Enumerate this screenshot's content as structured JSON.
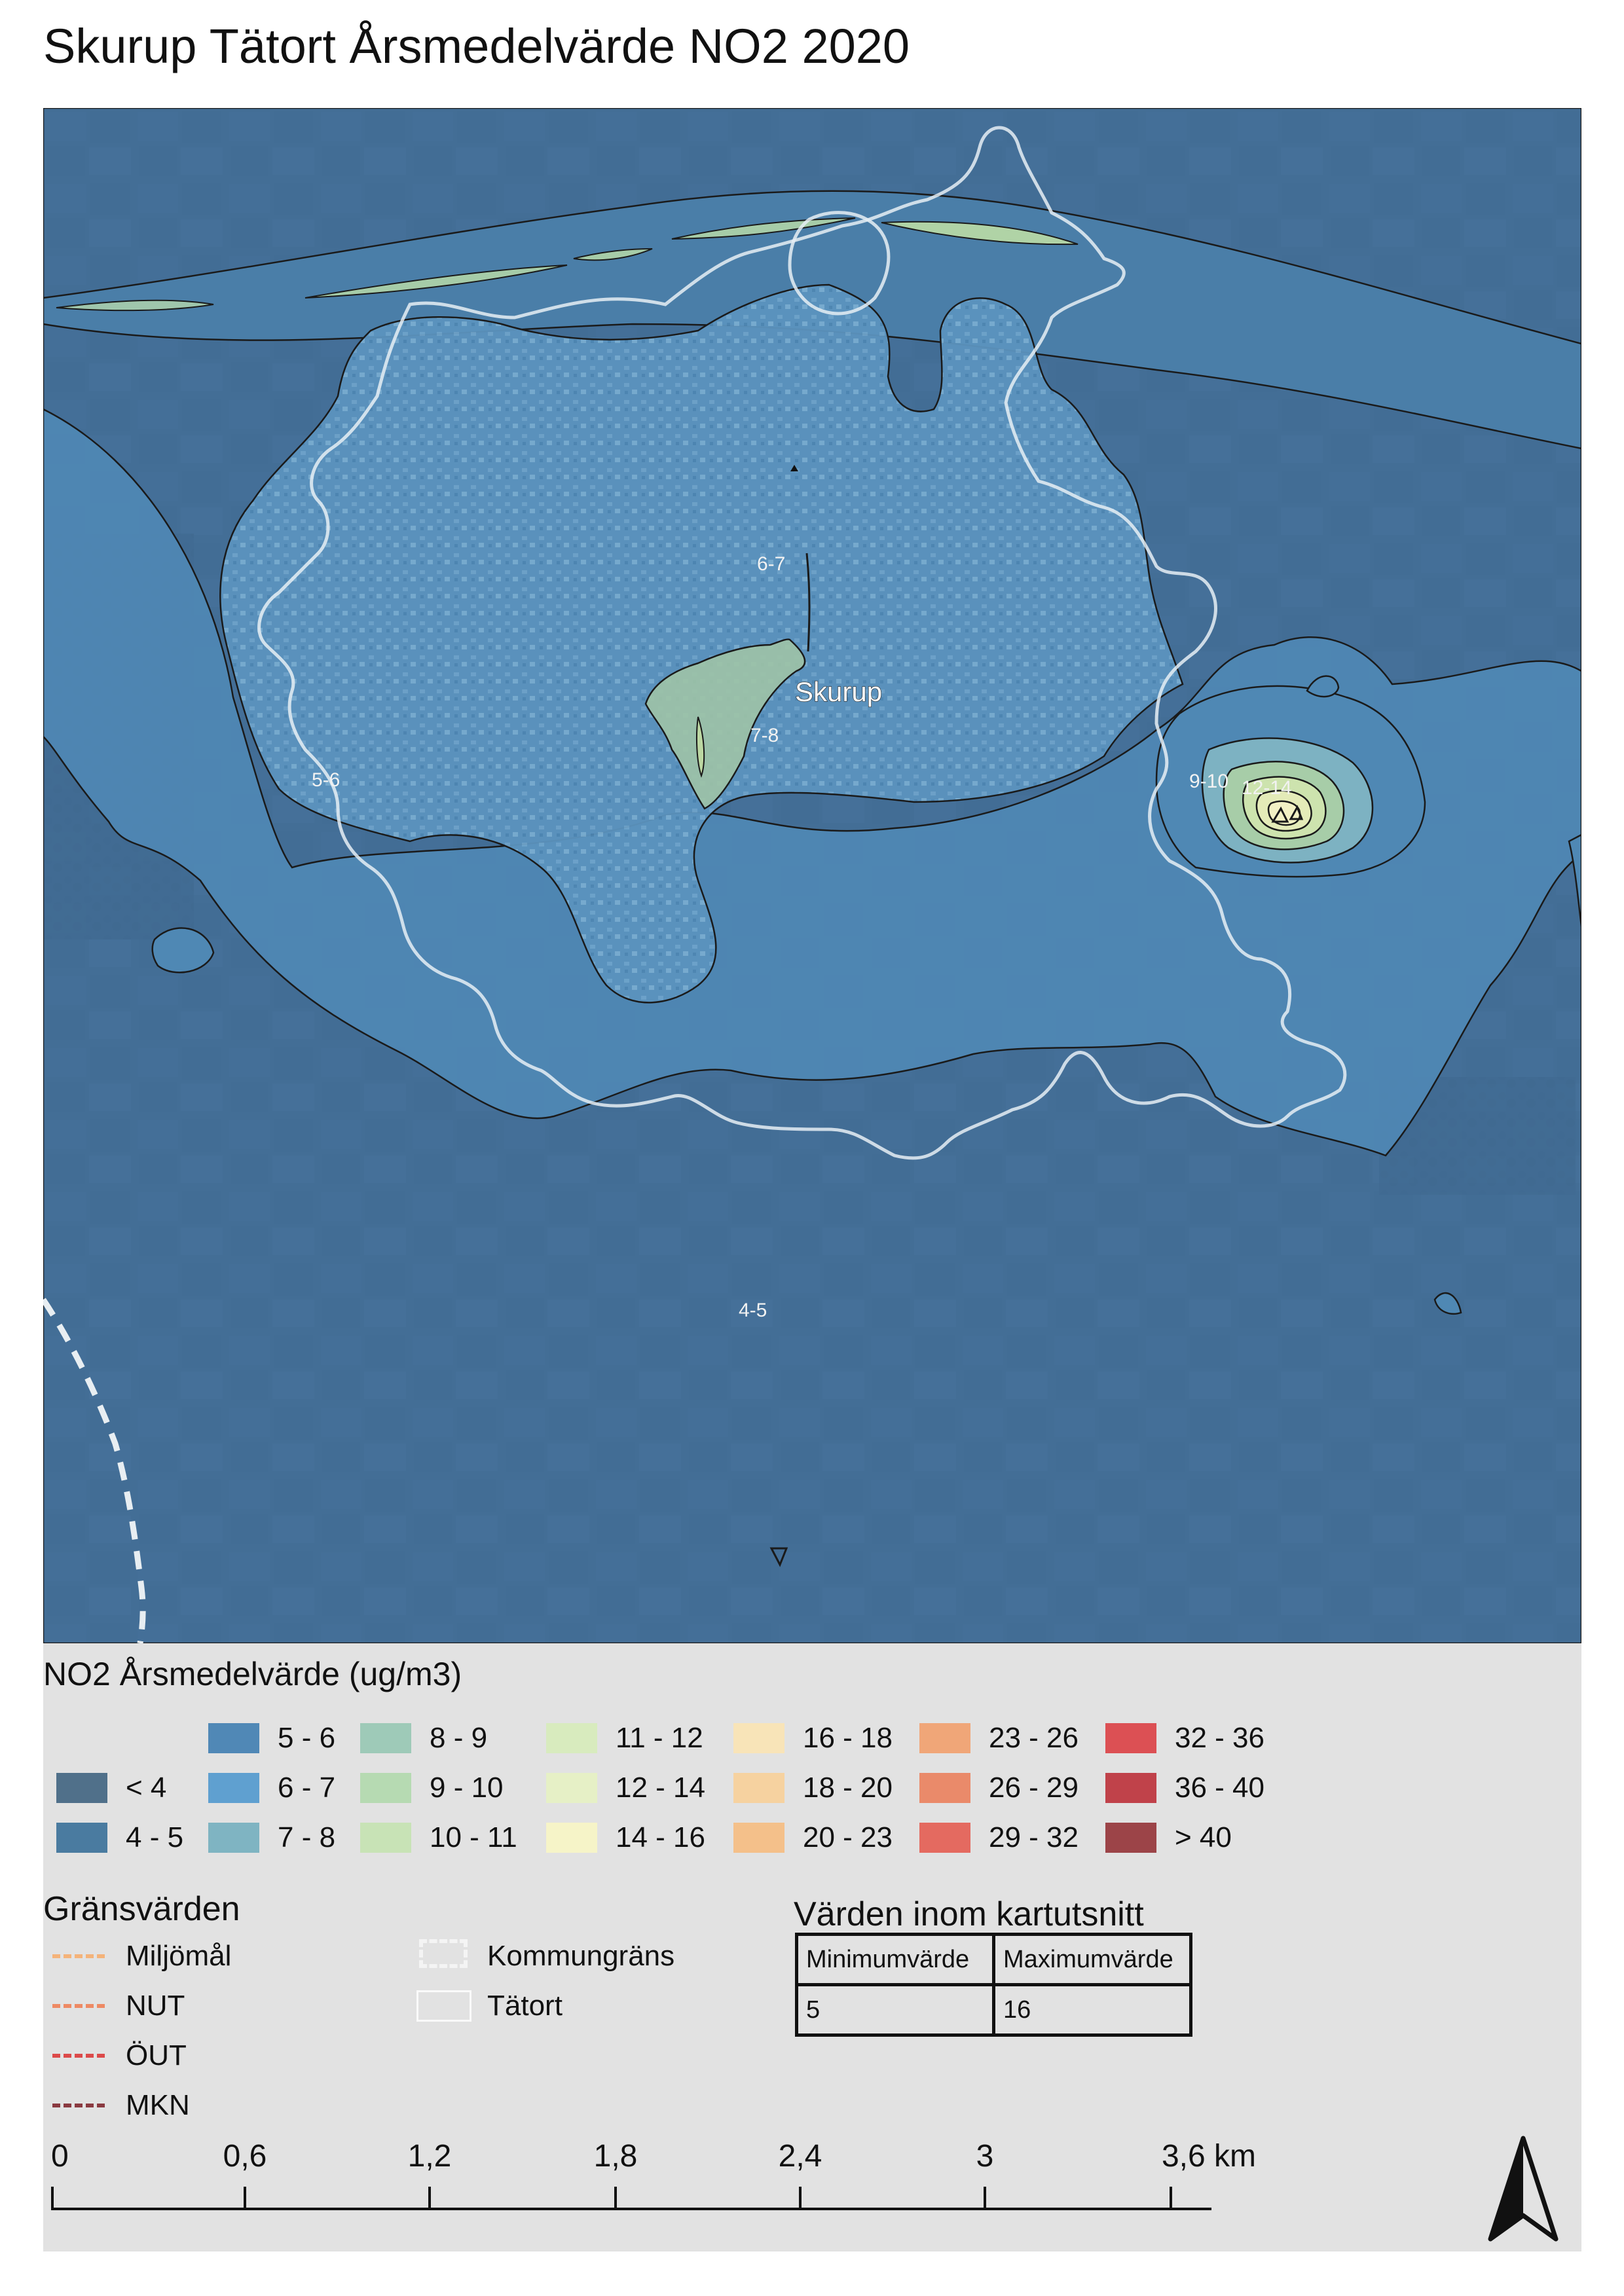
{
  "title": "Skurup Tätort Årsmedelvärde NO2 2020",
  "map": {
    "place_label": "Skurup",
    "contour_labels": [
      {
        "id": "c67",
        "text": "6-7"
      },
      {
        "id": "c78",
        "text": "7-8"
      },
      {
        "id": "c56",
        "text": "5-6"
      },
      {
        "id": "c910",
        "text": "9-10"
      },
      {
        "id": "c1214",
        "text": "12-14"
      },
      {
        "id": "c45",
        "text": "4-5"
      }
    ],
    "colors": {
      "lt4": "#4e7290",
      "c45": "#3e6e92",
      "c56": "#4f88b4",
      "c67": "#5b9ccc",
      "c78": "#8cb8a8",
      "c910": "#bcd7a2",
      "c1214": "#e4e8b3",
      "tatort_outline": "#e6eef5"
    }
  },
  "legend": {
    "title": "NO2 Årsmedelvärde (ug/m3)",
    "classes": [
      {
        "label": "< 4",
        "color": "#50708a"
      },
      {
        "label": "4 - 5",
        "color": "#4a7ba0"
      },
      {
        "label": "5 - 6",
        "color": "#5088b6"
      },
      {
        "label": "6 - 7",
        "color": "#5fa0d0"
      },
      {
        "label": "7 - 8",
        "color": "#7fb4c2"
      },
      {
        "label": "8 - 9",
        "color": "#9ecab8"
      },
      {
        "label": "9 - 10",
        "color": "#b6dab2"
      },
      {
        "label": "10 - 11",
        "color": "#c8e3b6"
      },
      {
        "label": "11 - 12",
        "color": "#d8ebbe"
      },
      {
        "label": "12 - 14",
        "color": "#e6f0c6"
      },
      {
        "label": "14 - 16",
        "color": "#f6f4c8"
      },
      {
        "label": "16 - 18",
        "color": "#f8e4b8"
      },
      {
        "label": "18 - 20",
        "color": "#f6d2a0"
      },
      {
        "label": "20 - 23",
        "color": "#f4c08a"
      },
      {
        "label": "23 - 26",
        "color": "#f0a678"
      },
      {
        "label": "26 - 29",
        "color": "#ea8a6a"
      },
      {
        "label": "29 - 32",
        "color": "#e46a60"
      },
      {
        "label": "32 - 36",
        "color": "#dc5054"
      },
      {
        "label": "36 - 40",
        "color": "#c0424a"
      },
      {
        "label": "> 40",
        "color": "#9c4448"
      }
    ],
    "limits": {
      "title": "Gränsvärden",
      "items": [
        {
          "label": "Miljömål",
          "color": "#f4b37a"
        },
        {
          "label": "NUT",
          "color": "#ee8a64"
        },
        {
          "label": "ÖUT",
          "color": "#dc4a4a"
        },
        {
          "label": "MKN",
          "color": "#8a3a40"
        }
      ]
    },
    "boundaries": {
      "kommungrans": "Kommungräns",
      "tatort": "Tätort"
    },
    "values_in_extent": {
      "title": "Värden inom kartutsnitt",
      "min_header": "Minimumvärde",
      "max_header": "Maximumvärde",
      "min_value": "5",
      "max_value": "16"
    },
    "scalebar": {
      "labels": [
        "0",
        "0,6",
        "1,2",
        "1,8",
        "2,4",
        "3",
        "3,6 km"
      ]
    },
    "north_arrow": "north-arrow-icon"
  }
}
